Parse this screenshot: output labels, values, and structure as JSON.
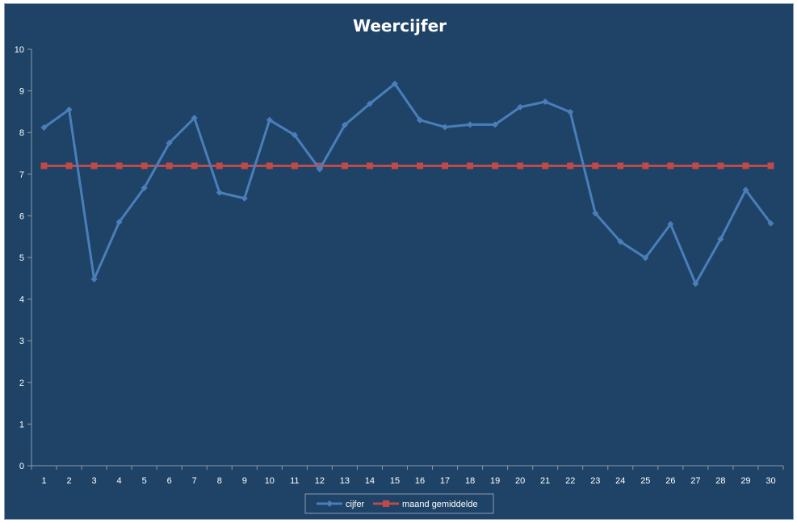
{
  "chart_data": {
    "type": "line",
    "title": "Weercijfer",
    "xlabel": "",
    "ylabel": "",
    "categories": [
      "1",
      "2",
      "3",
      "4",
      "5",
      "6",
      "7",
      "8",
      "9",
      "10",
      "11",
      "12",
      "13",
      "14",
      "15",
      "16",
      "17",
      "18",
      "19",
      "20",
      "21",
      "22",
      "23",
      "24",
      "25",
      "26",
      "27",
      "28",
      "29",
      "30"
    ],
    "ylim": [
      0,
      10
    ],
    "yticks": [
      "0",
      "1",
      "2",
      "3",
      "4",
      "5",
      "6",
      "7",
      "8",
      "9",
      "10"
    ],
    "grid": false,
    "legend_position": "bottom",
    "series": [
      {
        "name": "cijfer",
        "color": "#4a7ebb",
        "marker": "diamond",
        "values": [
          8.12,
          8.55,
          4.48,
          5.85,
          6.67,
          7.75,
          8.35,
          6.56,
          6.42,
          8.3,
          7.94,
          7.12,
          8.18,
          8.69,
          9.17,
          8.3,
          8.13,
          8.19,
          8.19,
          8.61,
          8.74,
          8.49,
          6.06,
          5.38,
          4.99,
          5.8,
          4.37,
          5.44,
          6.62,
          5.82
        ]
      },
      {
        "name": "maand gemiddelde",
        "color": "#be4b48",
        "marker": "square",
        "values": [
          7.2,
          7.2,
          7.2,
          7.2,
          7.2,
          7.2,
          7.2,
          7.2,
          7.2,
          7.2,
          7.2,
          7.2,
          7.2,
          7.2,
          7.2,
          7.2,
          7.2,
          7.2,
          7.2,
          7.2,
          7.2,
          7.2,
          7.2,
          7.2,
          7.2,
          7.2,
          7.2,
          7.2,
          7.2,
          7.2
        ]
      }
    ],
    "colors": {
      "background": "#1f4366",
      "axis": "#8a9bb0",
      "text": "#ffffff"
    }
  }
}
